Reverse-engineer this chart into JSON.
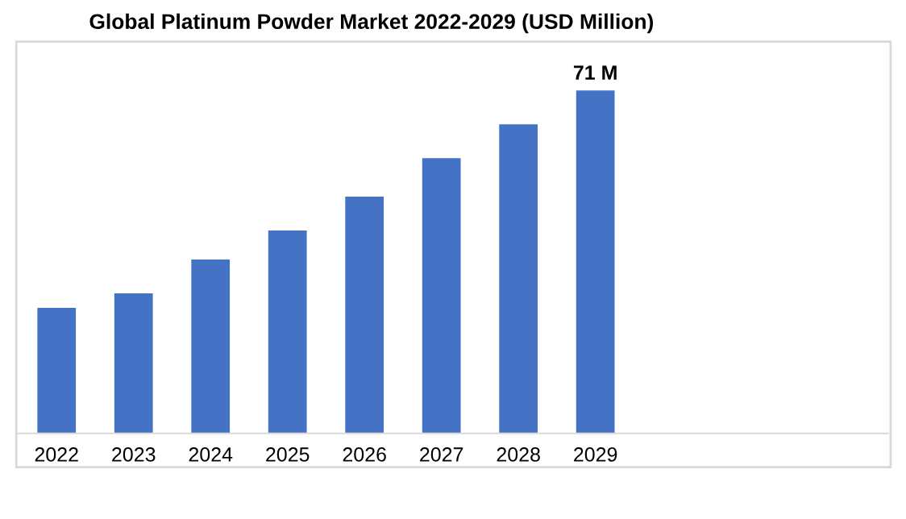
{
  "chart_data": {
    "type": "bar",
    "title": "Global Platinum Powder Market 2022-2029 (USD Million)",
    "categories": [
      "2022",
      "2023",
      "2024",
      "2025",
      "2026",
      "2027",
      "2028",
      "2029"
    ],
    "values": [
      26,
      29,
      36,
      42,
      49,
      57,
      64,
      71
    ],
    "value_labels": [
      null,
      null,
      null,
      null,
      null,
      null,
      null,
      "71 M"
    ],
    "color": "#4472c4",
    "grid": false,
    "legend": false
  }
}
